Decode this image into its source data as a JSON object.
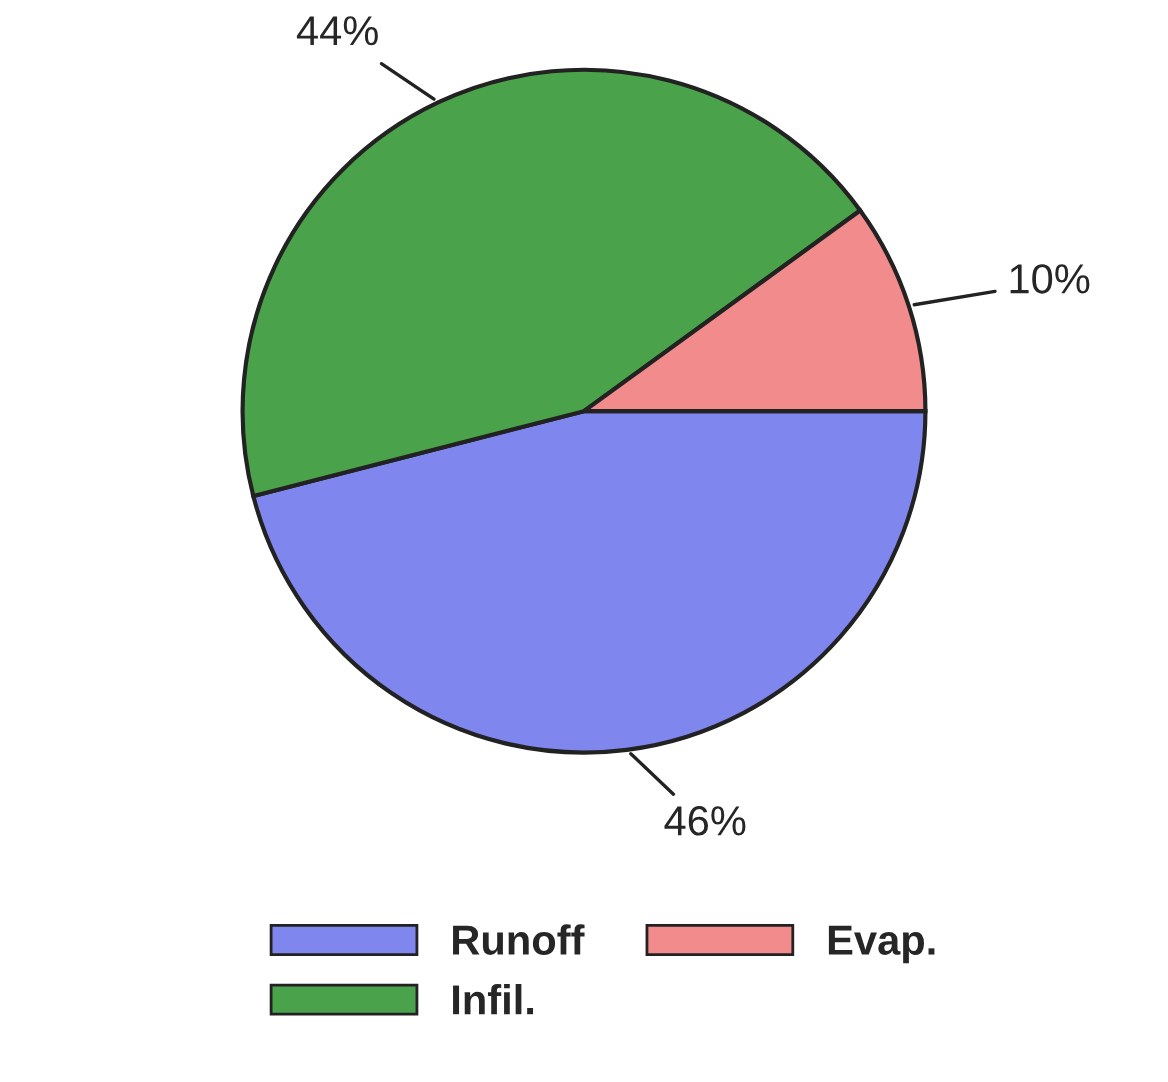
{
  "chart_data": {
    "type": "pie",
    "categories": [
      "Runoff",
      "Infil.",
      "Evap."
    ],
    "values": [
      46,
      44,
      10
    ],
    "value_labels": [
      "46%",
      "44%",
      "10%"
    ],
    "colors": [
      "#7f86ee",
      "#4aa34a",
      "#f28c8c"
    ],
    "legend": "bottom"
  }
}
